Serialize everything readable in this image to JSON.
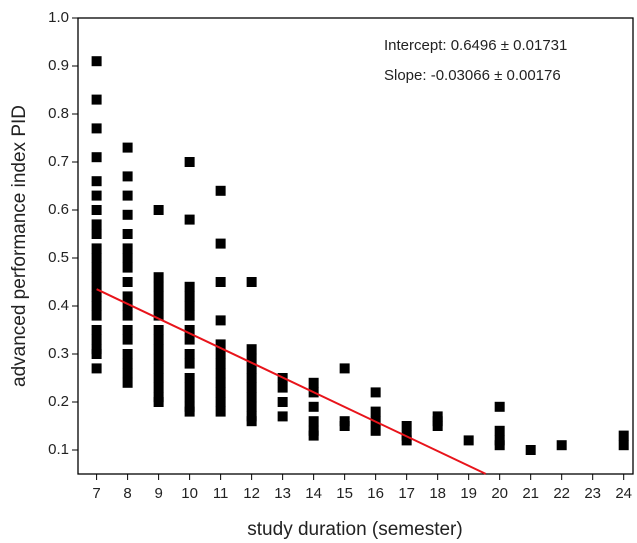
{
  "chart_data": {
    "type": "scatter",
    "x_label": "study duration (semester)",
    "y_label": "advanced performance index PID",
    "annotations": [
      "Intercept: 0.6496 ± 0.01731",
      "Slope: -0.03066 ± 0.00176"
    ],
    "xlim": [
      6.4,
      24.3
    ],
    "ylim": [
      0.05,
      1.0
    ],
    "xticks": [
      7,
      8,
      9,
      10,
      11,
      12,
      13,
      14,
      15,
      16,
      17,
      18,
      19,
      20,
      21,
      22,
      23,
      24
    ],
    "yticks": [
      0.1,
      0.2,
      0.3,
      0.4,
      0.5,
      0.6,
      0.7,
      0.8,
      0.9,
      {
        "value": 1.0,
        "label": "1.0"
      }
    ],
    "series": [
      {
        "color": "#000000",
        "x": [
          7,
          7,
          7,
          7,
          7,
          7,
          7,
          7,
          7,
          7,
          7,
          7,
          7,
          7,
          7,
          7,
          7,
          7,
          7,
          7,
          7,
          7,
          8,
          8,
          8,
          8,
          8,
          8,
          8,
          8,
          8,
          8,
          8,
          8,
          8,
          8,
          8,
          8,
          8,
          8,
          9,
          9,
          9,
          9,
          9,
          9,
          9,
          9,
          9,
          9,
          9,
          9,
          9,
          9,
          9,
          10,
          10,
          10,
          10,
          10,
          10,
          10,
          10,
          10,
          10,
          10,
          10,
          10,
          10,
          10,
          11,
          11,
          11,
          11,
          11,
          11,
          11,
          11,
          11,
          11,
          11,
          11,
          12,
          12,
          12,
          12,
          12,
          12,
          12,
          12,
          12,
          12,
          13,
          13,
          13,
          13,
          14,
          14,
          14,
          14,
          14,
          14,
          15,
          15,
          15,
          16,
          16,
          16,
          16,
          17,
          17,
          17,
          18,
          18,
          18,
          19,
          20,
          20,
          20,
          20,
          21,
          22,
          24,
          24
        ],
        "values": [
          0.91,
          0.83,
          0.77,
          0.71,
          0.66,
          0.63,
          0.6,
          0.57,
          0.55,
          0.52,
          0.5,
          0.48,
          0.46,
          0.44,
          0.42,
          0.4,
          0.38,
          0.35,
          0.33,
          0.31,
          0.3,
          0.27,
          0.73,
          0.67,
          0.63,
          0.59,
          0.55,
          0.52,
          0.5,
          0.48,
          0.45,
          0.42,
          0.4,
          0.38,
          0.35,
          0.33,
          0.3,
          0.28,
          0.26,
          0.24,
          0.6,
          0.46,
          0.44,
          0.42,
          0.4,
          0.38,
          0.35,
          0.33,
          0.31,
          0.29,
          0.27,
          0.25,
          0.23,
          0.21,
          0.2,
          0.7,
          0.58,
          0.44,
          0.42,
          0.4,
          0.38,
          0.35,
          0.33,
          0.3,
          0.28,
          0.25,
          0.23,
          0.21,
          0.19,
          0.18,
          0.64,
          0.53,
          0.45,
          0.37,
          0.32,
          0.3,
          0.28,
          0.26,
          0.24,
          0.22,
          0.2,
          0.18,
          0.45,
          0.31,
          0.29,
          0.27,
          0.25,
          0.23,
          0.21,
          0.19,
          0.17,
          0.16,
          0.25,
          0.23,
          0.2,
          0.17,
          0.24,
          0.22,
          0.19,
          0.16,
          0.14,
          0.13,
          0.27,
          0.16,
          0.15,
          0.22,
          0.18,
          0.16,
          0.14,
          0.15,
          0.13,
          0.12,
          0.17,
          0.16,
          0.15,
          0.12,
          0.19,
          0.14,
          0.12,
          0.11,
          0.1,
          0.11,
          0.13,
          0.11
        ]
      },
      {
        "type": "line",
        "color": "#e8141b",
        "x": [
          7,
          19.55
        ],
        "values": [
          0.435,
          0.0502
        ]
      }
    ]
  }
}
